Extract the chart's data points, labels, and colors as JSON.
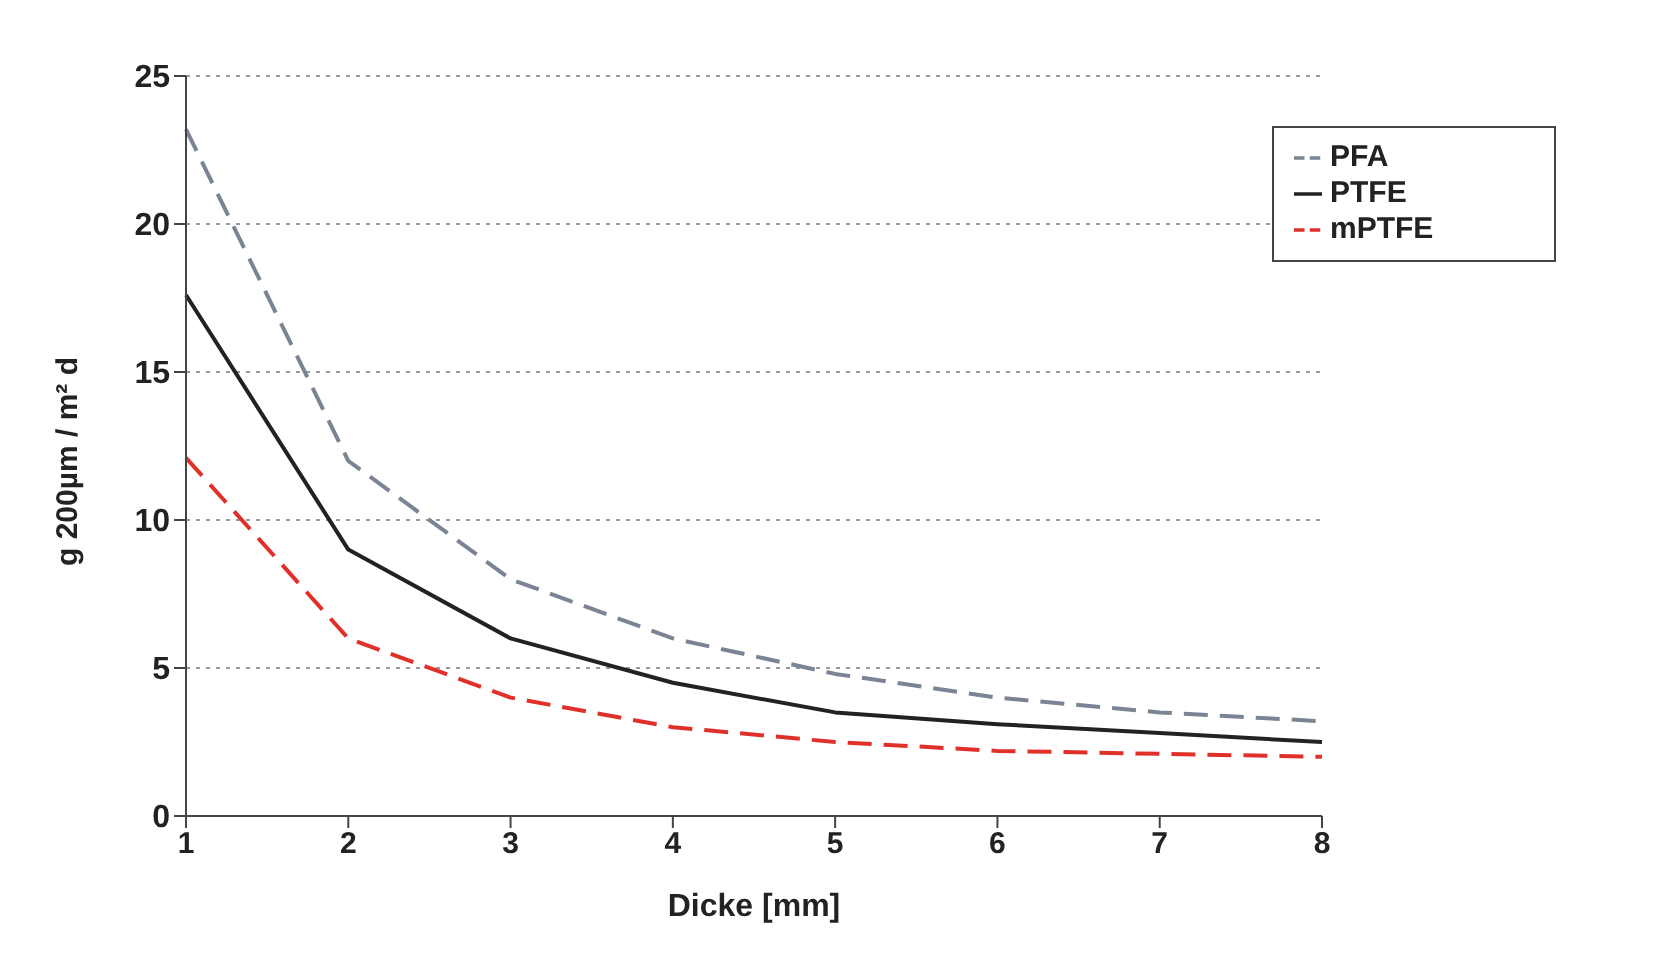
{
  "chart_data": {
    "type": "line",
    "xlabel": "Dicke [mm]",
    "ylabel": "g 200µm / m² d",
    "categories": [
      "1",
      "2",
      "3",
      "4",
      "5",
      "6",
      "7",
      "8"
    ],
    "series": [
      {
        "name": "PFA",
        "color": "#7a8494",
        "line_style": "dashed",
        "values": [
          23.2,
          12,
          8,
          6,
          4.8,
          4,
          3.5,
          3.2
        ]
      },
      {
        "name": "PTFE",
        "color": "#222222",
        "line_style": "solid",
        "values": [
          17.6,
          9,
          6,
          4.5,
          3.5,
          3.1,
          2.8,
          2.5
        ]
      },
      {
        "name": "mPTFE",
        "color": "#e0302a",
        "line_style": "dashed",
        "values": [
          12.1,
          6,
          4,
          3,
          2.5,
          2.2,
          2.1,
          2
        ]
      }
    ],
    "ylim": [
      0,
      25
    ],
    "yticks": [
      0,
      5,
      10,
      15,
      20,
      25
    ],
    "grid": "y",
    "legend": "top right",
    "marker": "none"
  }
}
